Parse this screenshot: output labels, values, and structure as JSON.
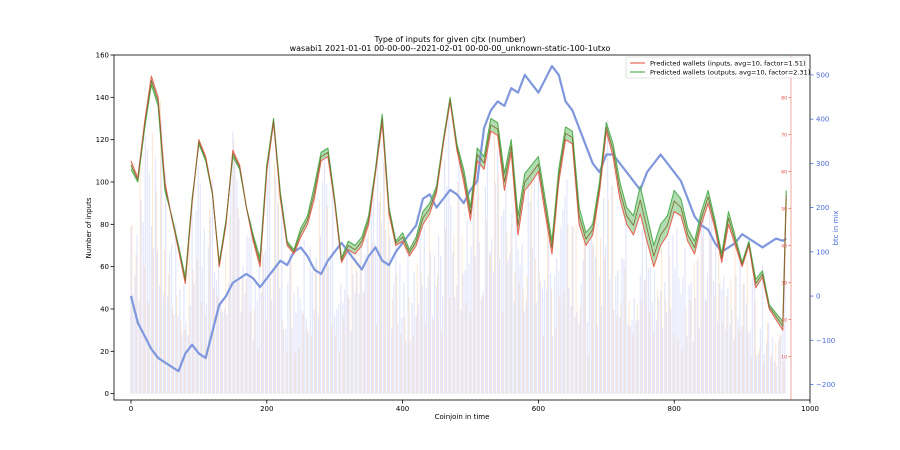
{
  "chart_data": {
    "type": "line",
    "title": "Type of inputs for given cjtx (number)",
    "subtitle": "wasabi1 2021-01-01 00-00-00--2021-02-01 00-00-00_unknown-static-100-1utxo",
    "xlabel": "Coinjoin in time",
    "ylabel": "Number of inputs",
    "y2label": "btc in mix",
    "xlim": [
      -25,
      1000
    ],
    "ylim": [
      -3,
      160
    ],
    "y2lim": [
      -235,
      545
    ],
    "x_ticks": [
      0,
      200,
      400,
      600,
      800,
      1000
    ],
    "y_ticks": [
      0,
      20,
      40,
      60,
      80,
      100,
      120,
      140,
      160
    ],
    "y2_ticks": [
      -200,
      -100,
      0,
      100,
      200,
      300,
      400,
      500
    ],
    "y3_ticks": [
      10,
      20,
      30,
      40,
      50,
      60,
      70,
      80
    ],
    "legend_position": "top-right",
    "colors": {
      "inputs": "#e8685a",
      "outputs": "#55b155",
      "btc": "#7f97dc",
      "y2_axis": "#4a6bd6",
      "y3_axis": "#e0473a",
      "bars_blue": "#9ba4f5",
      "bars_orange": "#f6c68f"
    },
    "series": [
      {
        "name": "Predicted wallets (inputs, avg=10, factor=1.51)",
        "axis": "left",
        "x": [
          0,
          10,
          20,
          30,
          40,
          50,
          60,
          70,
          80,
          90,
          100,
          110,
          120,
          130,
          140,
          150,
          160,
          170,
          180,
          190,
          200,
          210,
          220,
          230,
          240,
          250,
          260,
          270,
          280,
          290,
          300,
          310,
          320,
          330,
          340,
          350,
          360,
          370,
          380,
          390,
          400,
          410,
          420,
          430,
          440,
          450,
          460,
          470,
          480,
          490,
          500,
          510,
          520,
          530,
          540,
          550,
          560,
          570,
          580,
          590,
          600,
          610,
          620,
          630,
          640,
          650,
          660,
          670,
          680,
          690,
          700,
          710,
          720,
          730,
          740,
          750,
          760,
          770,
          780,
          790,
          800,
          810,
          820,
          830,
          840,
          850,
          860,
          870,
          880,
          890,
          900,
          910,
          920,
          930,
          940,
          950,
          960,
          965
        ],
        "values": [
          110,
          102,
          128,
          150,
          140,
          100,
          83,
          68,
          52,
          90,
          120,
          112,
          95,
          60,
          80,
          115,
          108,
          88,
          72,
          60,
          105,
          128,
          92,
          70,
          66,
          74,
          80,
          92,
          110,
          112,
          90,
          62,
          68,
          66,
          70,
          80,
          104,
          128,
          85,
          70,
          72,
          65,
          70,
          80,
          85,
          95,
          118,
          138,
          115,
          100,
          82,
          110,
          106,
          124,
          122,
          96,
          114,
          75,
          96,
          100,
          105,
          85,
          66,
          100,
          120,
          118,
          80,
          70,
          75,
          95,
          124,
          112,
          92,
          80,
          75,
          85,
          72,
          60,
          70,
          75,
          86,
          84,
          72,
          66,
          80,
          90,
          78,
          62,
          80,
          70,
          60,
          70,
          50,
          55,
          40,
          35,
          30,
          92
        ]
      },
      {
        "name": "Predicted wallets (outputs, avg=10, factor=2.31)",
        "axis": "left",
        "x": [
          0,
          10,
          20,
          30,
          40,
          50,
          60,
          70,
          80,
          90,
          100,
          110,
          120,
          130,
          140,
          150,
          160,
          170,
          180,
          190,
          200,
          210,
          220,
          230,
          240,
          250,
          260,
          270,
          280,
          290,
          300,
          310,
          320,
          330,
          340,
          350,
          360,
          370,
          380,
          390,
          400,
          410,
          420,
          430,
          440,
          450,
          460,
          470,
          480,
          490,
          500,
          510,
          520,
          530,
          540,
          550,
          560,
          570,
          580,
          590,
          600,
          610,
          620,
          630,
          640,
          650,
          660,
          670,
          680,
          690,
          700,
          710,
          720,
          730,
          740,
          750,
          760,
          770,
          780,
          790,
          800,
          810,
          820,
          830,
          840,
          850,
          860,
          870,
          880,
          890,
          900,
          910,
          920,
          930,
          940,
          950,
          960,
          965
        ],
        "values": [
          106,
          100,
          125,
          146,
          136,
          96,
          84,
          70,
          55,
          92,
          118,
          110,
          94,
          62,
          82,
          112,
          106,
          88,
          75,
          64,
          108,
          130,
          95,
          72,
          68,
          78,
          84,
          98,
          114,
          116,
          92,
          64,
          72,
          70,
          74,
          84,
          106,
          132,
          88,
          72,
          76,
          68,
          74,
          86,
          90,
          98,
          120,
          140,
          118,
          106,
          88,
          116,
          112,
          130,
          128,
          104,
          120,
          84,
          104,
          108,
          112,
          92,
          72,
          106,
          126,
          124,
          88,
          76,
          80,
          100,
          128,
          118,
          100,
          88,
          84,
          98,
          84,
          70,
          80,
          84,
          96,
          92,
          78,
          72,
          86,
          96,
          82,
          66,
          86,
          74,
          62,
          72,
          54,
          58,
          42,
          38,
          34,
          96
        ]
      },
      {
        "name": "btc in mix",
        "axis": "right",
        "x": [
          0,
          10,
          20,
          30,
          40,
          50,
          60,
          70,
          80,
          90,
          100,
          110,
          120,
          130,
          140,
          150,
          160,
          170,
          180,
          190,
          200,
          210,
          220,
          230,
          240,
          250,
          260,
          270,
          280,
          290,
          300,
          310,
          320,
          330,
          340,
          350,
          360,
          370,
          380,
          390,
          400,
          410,
          420,
          430,
          440,
          450,
          460,
          470,
          480,
          490,
          500,
          510,
          520,
          530,
          540,
          550,
          560,
          570,
          580,
          590,
          600,
          610,
          620,
          630,
          640,
          650,
          660,
          670,
          680,
          690,
          700,
          710,
          720,
          730,
          740,
          750,
          760,
          770,
          780,
          790,
          800,
          810,
          820,
          830,
          840,
          850,
          860,
          870,
          880,
          890,
          900,
          910,
          920,
          930,
          940,
          950,
          960,
          965
        ],
        "values": [
          0,
          -60,
          -90,
          -120,
          -140,
          -150,
          -160,
          -170,
          -130,
          -110,
          -130,
          -140,
          -80,
          -20,
          0,
          30,
          40,
          50,
          40,
          20,
          40,
          60,
          80,
          70,
          100,
          110,
          90,
          60,
          50,
          80,
          100,
          120,
          100,
          80,
          60,
          90,
          110,
          80,
          70,
          100,
          120,
          140,
          160,
          220,
          230,
          200,
          220,
          240,
          230,
          210,
          240,
          260,
          380,
          420,
          440,
          430,
          470,
          460,
          500,
          480,
          460,
          490,
          520,
          500,
          440,
          420,
          380,
          340,
          300,
          280,
          320,
          320,
          300,
          280,
          260,
          240,
          280,
          300,
          320,
          300,
          280,
          260,
          220,
          180,
          160,
          150,
          120,
          100,
          110,
          120,
          140,
          130,
          120,
          110,
          120,
          130,
          125,
          130
        ]
      }
    ]
  }
}
